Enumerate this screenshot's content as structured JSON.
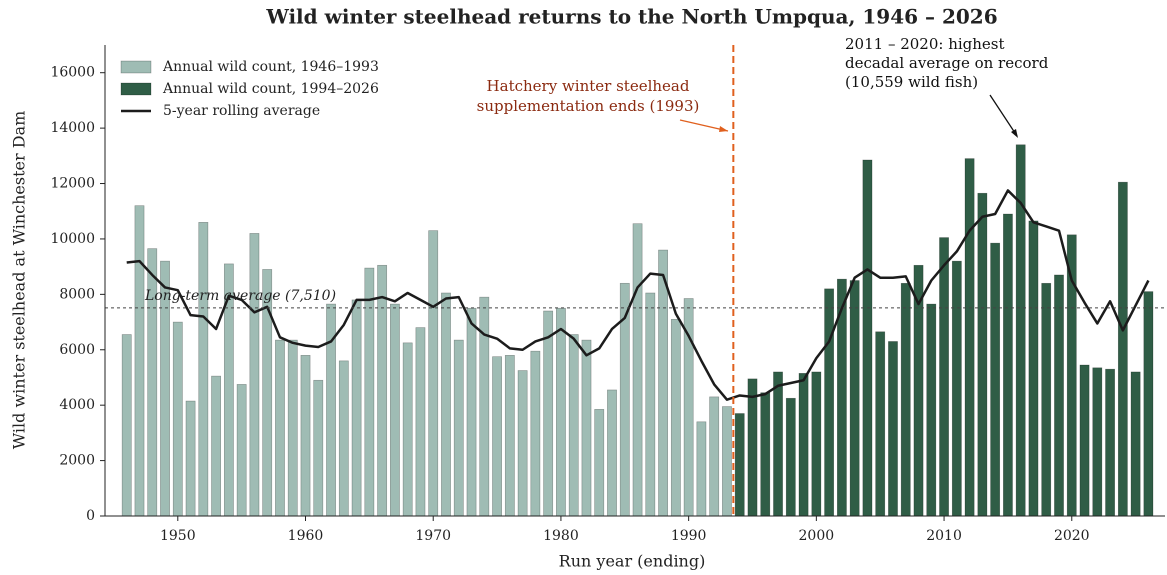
{
  "chart_data": {
    "type": "bar",
    "title": "Wild winter steelhead returns to the North Umpqua, 1946 – 2026",
    "x_label": "Run year (ending)",
    "y_label": "Wild winter steelhead at Winchester Dam",
    "xlim": [
      1944.3,
      2027.3
    ],
    "xticks": [
      1950,
      1960,
      1970,
      1980,
      1990,
      2000,
      2010,
      2020
    ],
    "ylim": [
      0,
      17000
    ],
    "yticks": [
      0,
      2000,
      4000,
      6000,
      8000,
      10000,
      12000,
      14000,
      16000
    ],
    "grid": false,
    "legend": "upper left",
    "series": [
      {
        "name": "Annual wild count, 1946–1993",
        "type": "bar",
        "color": "#9fbcb4",
        "x": [
          1946,
          1947,
          1948,
          1949,
          1950,
          1951,
          1952,
          1953,
          1954,
          1955,
          1956,
          1957,
          1958,
          1959,
          1960,
          1961,
          1962,
          1963,
          1964,
          1965,
          1966,
          1967,
          1968,
          1969,
          1970,
          1971,
          1972,
          1973,
          1974,
          1975,
          1976,
          1977,
          1978,
          1979,
          1980,
          1981,
          1982,
          1983,
          1984,
          1985,
          1986,
          1987,
          1988,
          1989,
          1990,
          1991,
          1992,
          1993
        ],
        "values": [
          6550,
          11200,
          9650,
          9200,
          7000,
          4150,
          10600,
          5050,
          9100,
          4750,
          10200,
          8900,
          6350,
          6350,
          5800,
          4900,
          7650,
          5600,
          7800,
          8950,
          9050,
          7650,
          6250,
          6800,
          10300,
          8050,
          6350,
          7500,
          7900,
          5750,
          5800,
          5250,
          5950,
          7400,
          7500,
          6550,
          6350,
          3850,
          4550,
          8400,
          10550,
          8050,
          9600,
          7100,
          7850,
          3400,
          4300,
          3950
        ]
      },
      {
        "name": "Annual wild count, 1994–2026",
        "type": "bar",
        "color": "#2f5d46",
        "x": [
          1994,
          1995,
          1996,
          1997,
          1998,
          1999,
          2000,
          2001,
          2002,
          2003,
          2004,
          2005,
          2006,
          2007,
          2008,
          2009,
          2010,
          2011,
          2012,
          2013,
          2014,
          2015,
          2016,
          2017,
          2018,
          2019,
          2020,
          2021,
          2022,
          2023,
          2024,
          2025,
          2026
        ],
        "values": [
          3700,
          4950,
          4450,
          5200,
          4250,
          5150,
          5200,
          8200,
          8550,
          8500,
          12850,
          6650,
          6300,
          8400,
          9050,
          7650,
          10050,
          9200,
          12900,
          11650,
          9850,
          10900,
          13400,
          10650,
          8400,
          8700,
          10150,
          5450,
          5350,
          5300,
          12050,
          5200,
          8100
        ]
      },
      {
        "name": "5-year rolling average",
        "type": "line",
        "color": "#1c1c1c",
        "x": [
          1946,
          1947,
          1948,
          1949,
          1950,
          1951,
          1952,
          1953,
          1954,
          1955,
          1956,
          1957,
          1958,
          1959,
          1960,
          1961,
          1962,
          1963,
          1964,
          1965,
          1966,
          1967,
          1968,
          1969,
          1970,
          1971,
          1972,
          1973,
          1974,
          1975,
          1976,
          1977,
          1978,
          1979,
          1980,
          1981,
          1982,
          1983,
          1984,
          1985,
          1986,
          1987,
          1988,
          1989,
          1990,
          1991,
          1992,
          1993,
          1994,
          1995,
          1996,
          1997,
          1998,
          1999,
          2000,
          2001,
          2002,
          2003,
          2004,
          2005,
          2006,
          2007,
          2008,
          2009,
          2010,
          2011,
          2012,
          2013,
          2014,
          2015,
          2016,
          2017,
          2018,
          2019,
          2020,
          2021,
          2022,
          2023,
          2024,
          2025,
          2026
        ],
        "values": [
          9150,
          9200,
          8700,
          8250,
          8150,
          7250,
          7200,
          6750,
          7950,
          7800,
          7350,
          7550,
          6450,
          6250,
          6150,
          6100,
          6300,
          6900,
          7800,
          7800,
          7900,
          7750,
          8050,
          7800,
          7550,
          7850,
          7900,
          6950,
          6550,
          6400,
          6050,
          6000,
          6300,
          6450,
          6750,
          6400,
          5800,
          6050,
          6750,
          7150,
          8250,
          8750,
          8700,
          7300,
          6500,
          5600,
          4750,
          4200,
          4350,
          4300,
          4400,
          4700,
          4800,
          4900,
          5700,
          6300,
          7500,
          8600,
          8900,
          8600,
          8600,
          8650,
          7650,
          8500,
          9050,
          9550,
          10300,
          10800,
          10900,
          11750,
          11300,
          10600,
          10450,
          10300,
          8500,
          7700,
          6950,
          7750,
          6700,
          7600,
          8500
        ]
      }
    ],
    "reference_line": {
      "value": 7510,
      "label": "Long-term average (7,510)",
      "color": "#444444"
    },
    "vline": {
      "x": 1993.5,
      "color": "#e0601e"
    },
    "annotations": [
      {
        "lines": [
          "Hatchery winter steelhead",
          "supplementation ends (1993)"
        ],
        "color": "#8b2a10"
      },
      {
        "lines": [
          "2011 – 2020: highest",
          "decadal average on record",
          "(10,559 wild fish)"
        ],
        "color": "#111111"
      }
    ]
  }
}
